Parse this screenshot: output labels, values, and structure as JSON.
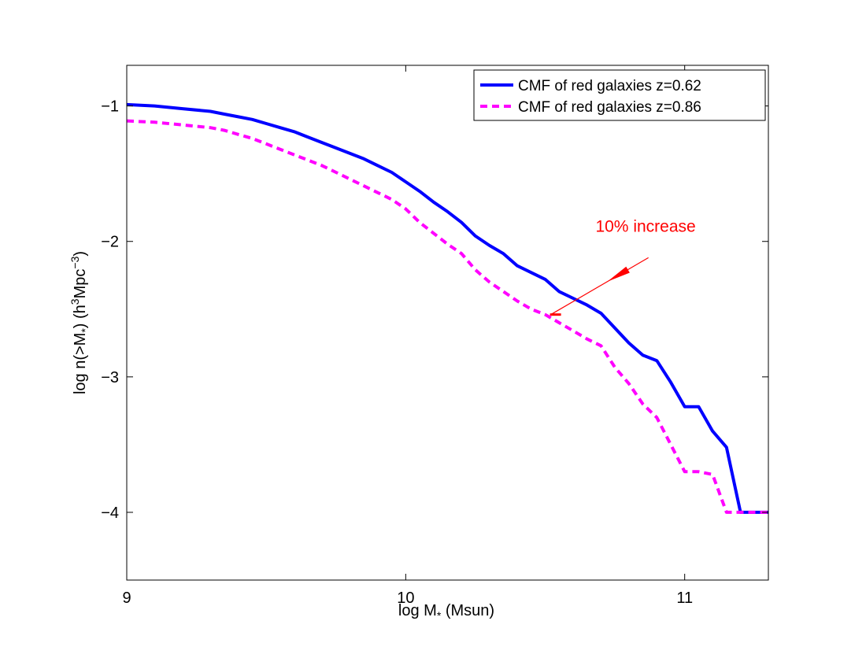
{
  "chart_data": {
    "type": "line",
    "title": "",
    "xlabel": "log M",
    "xlabel_sub": "*",
    "xlabel_suffix": " (Msun)",
    "ylabel_parts": {
      "prefix": "log n(>M",
      "sub": "*",
      "mid": ") (h",
      "sup1": "3",
      "mid2": "Mpc",
      "sup2": "−3",
      "end": ")"
    },
    "xlim": [
      9,
      11.3
    ],
    "ylim": [
      -4.5,
      -0.7
    ],
    "xticks": [
      9,
      10,
      11
    ],
    "xtick_labels": [
      "9",
      "10",
      "11"
    ],
    "yticks": [
      -1,
      -2,
      -3,
      -4
    ],
    "ytick_labels": [
      "−1",
      "−2",
      "−3",
      "−4"
    ],
    "grid": false,
    "legend_position": "top-right",
    "series": [
      {
        "name": "CMF of red galaxies z=0.62",
        "color": "#0000ff",
        "style": "solid",
        "x": [
          9.0,
          9.1,
          9.2,
          9.3,
          9.35,
          9.4,
          9.45,
          9.5,
          9.55,
          9.6,
          9.65,
          9.7,
          9.75,
          9.8,
          9.85,
          9.9,
          9.95,
          10.0,
          10.05,
          10.1,
          10.15,
          10.2,
          10.25,
          10.3,
          10.35,
          10.4,
          10.45,
          10.5,
          10.55,
          10.6,
          10.65,
          10.7,
          10.75,
          10.8,
          10.85,
          10.9,
          10.95,
          11.0,
          11.05,
          11.1,
          11.15,
          11.2,
          11.25,
          11.3
        ],
        "y": [
          -0.99,
          -1.0,
          -1.02,
          -1.04,
          -1.06,
          -1.08,
          -1.1,
          -1.13,
          -1.16,
          -1.19,
          -1.23,
          -1.27,
          -1.31,
          -1.35,
          -1.39,
          -1.44,
          -1.49,
          -1.56,
          -1.63,
          -1.71,
          -1.78,
          -1.86,
          -1.96,
          -2.03,
          -2.09,
          -2.18,
          -2.23,
          -2.28,
          -2.37,
          -2.42,
          -2.47,
          -2.53,
          -2.64,
          -2.75,
          -2.84,
          -2.88,
          -3.04,
          -3.22,
          -3.22,
          -3.4,
          -3.52,
          -4.0,
          -4.0,
          -4.0
        ]
      },
      {
        "name": "CMF of red galaxies z=0.86",
        "color": "#ff00ff",
        "style": "dashed",
        "x": [
          9.0,
          9.1,
          9.2,
          9.3,
          9.35,
          9.4,
          9.45,
          9.5,
          9.55,
          9.6,
          9.65,
          9.7,
          9.75,
          9.8,
          9.85,
          9.9,
          9.95,
          10.0,
          10.05,
          10.1,
          10.15,
          10.2,
          10.25,
          10.3,
          10.35,
          10.4,
          10.45,
          10.5,
          10.55,
          10.6,
          10.65,
          10.7,
          10.75,
          10.8,
          10.85,
          10.9,
          10.95,
          11.0,
          11.05,
          11.1,
          11.15,
          11.2,
          11.25,
          11.3
        ],
        "y": [
          -1.11,
          -1.12,
          -1.14,
          -1.16,
          -1.18,
          -1.21,
          -1.24,
          -1.28,
          -1.32,
          -1.36,
          -1.4,
          -1.44,
          -1.49,
          -1.54,
          -1.59,
          -1.64,
          -1.69,
          -1.76,
          -1.86,
          -1.94,
          -2.02,
          -2.09,
          -2.21,
          -2.3,
          -2.37,
          -2.44,
          -2.5,
          -2.54,
          -2.6,
          -2.66,
          -2.72,
          -2.77,
          -2.93,
          -3.05,
          -3.2,
          -3.3,
          -3.5,
          -3.7,
          -3.7,
          -3.72,
          -4.0,
          -4.0,
          -4.0,
          -4.0
        ]
      }
    ],
    "annotation": {
      "text": "10% increase",
      "color": "#ff0000",
      "text_at": [
        10.86,
        -1.93
      ],
      "arrow_start": [
        10.87,
        -2.12
      ],
      "arrow_head": [
        10.52,
        -2.54
      ]
    }
  }
}
